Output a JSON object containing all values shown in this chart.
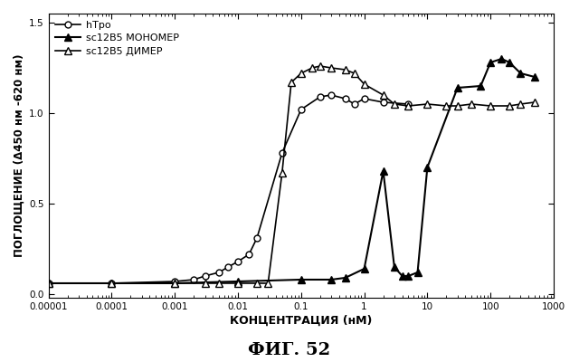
{
  "title": "ФИГ. 52",
  "xlabel": "КОНЦЕНТРАЦИЯ (нМ)",
  "ylabel": "ПОГЛОЩЕНИЕ (Δ450 нм -620 нм)",
  "ylim": [
    -0.02,
    1.55
  ],
  "yticks": [
    0.0,
    0.5,
    1.0,
    1.5
  ],
  "hTpo_x": [
    1e-05,
    0.0001,
    0.001,
    0.002,
    0.003,
    0.005,
    0.007,
    0.01,
    0.015,
    0.02,
    0.05,
    0.1,
    0.2,
    0.3,
    0.5,
    0.7,
    1.0,
    2.0,
    5.0
  ],
  "hTpo_y": [
    0.06,
    0.06,
    0.07,
    0.08,
    0.1,
    0.12,
    0.15,
    0.18,
    0.22,
    0.31,
    0.78,
    1.02,
    1.09,
    1.1,
    1.08,
    1.05,
    1.08,
    1.06,
    1.05
  ],
  "monomer_x": [
    1e-05,
    0.0001,
    0.001,
    0.01,
    0.1,
    0.3,
    0.5,
    1.0,
    2.0,
    3.0,
    4.0,
    5.0,
    7.0,
    10.0,
    30.0,
    70.0,
    100.0,
    150.0,
    200.0,
    300.0,
    500.0
  ],
  "monomer_y": [
    0.06,
    0.06,
    0.06,
    0.07,
    0.08,
    0.08,
    0.09,
    0.14,
    0.68,
    0.15,
    0.1,
    0.1,
    0.12,
    0.7,
    1.14,
    1.15,
    1.28,
    1.3,
    1.28,
    1.22,
    1.2
  ],
  "dimer_x": [
    1e-05,
    0.0001,
    0.001,
    0.003,
    0.005,
    0.01,
    0.02,
    0.03,
    0.05,
    0.07,
    0.1,
    0.15,
    0.2,
    0.3,
    0.5,
    0.7,
    1.0,
    2.0,
    3.0,
    5.0,
    10.0,
    20.0,
    30.0,
    50.0,
    100.0,
    200.0,
    300.0,
    500.0
  ],
  "dimer_y": [
    0.06,
    0.06,
    0.06,
    0.06,
    0.06,
    0.06,
    0.06,
    0.06,
    0.67,
    1.17,
    1.22,
    1.25,
    1.26,
    1.25,
    1.24,
    1.22,
    1.16,
    1.1,
    1.05,
    1.04,
    1.05,
    1.04,
    1.04,
    1.05,
    1.04,
    1.04,
    1.05,
    1.06
  ],
  "legend_label_hTpo": "hTpo",
  "legend_label_mono": "sc12B5 МОНОМЕР",
  "legend_label_dimer": "sc12B5 ДИМЕР",
  "xtick_labels": [
    "0.00001",
    "0.0001",
    "0.001",
    "0.01",
    "0.1",
    "1",
    "10",
    "100",
    "1000"
  ],
  "xtick_vals": [
    1e-05,
    0.0001,
    0.001,
    0.01,
    0.1,
    1.0,
    10.0,
    100.0,
    1000.0
  ],
  "background_color": "#ffffff",
  "line_color": "#000000"
}
